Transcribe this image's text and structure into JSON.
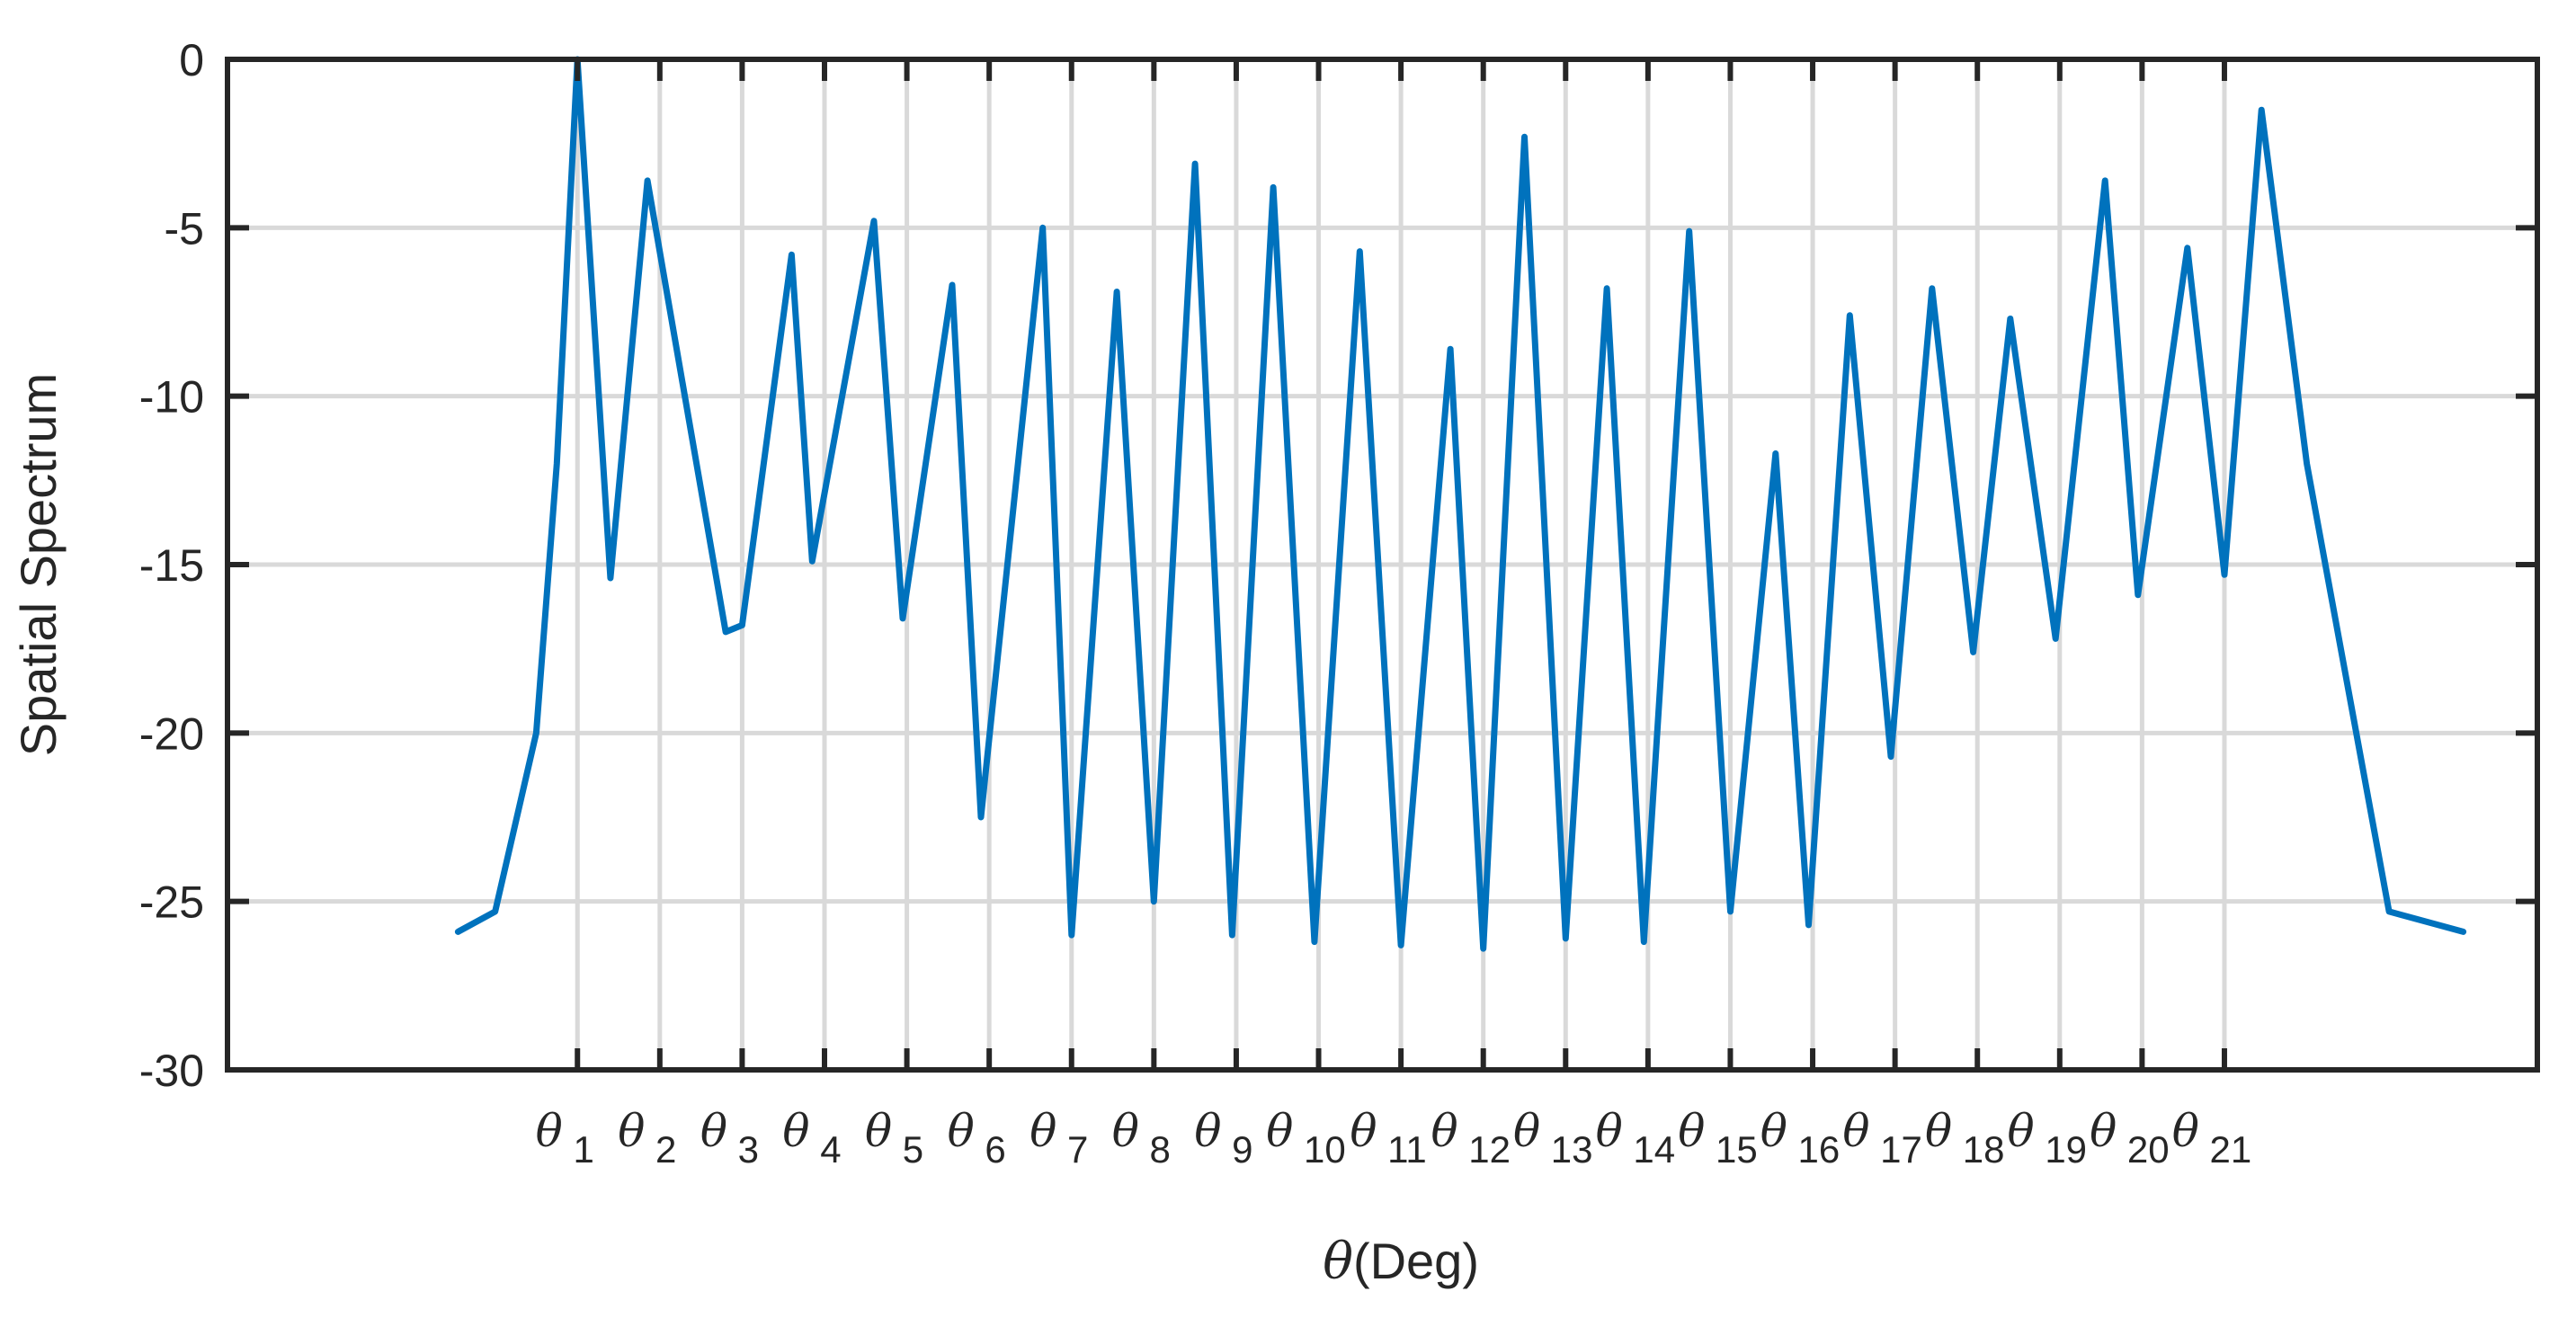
{
  "chart_data": {
    "type": "line",
    "title": "",
    "xlabel_symbol": "θ",
    "xlabel_unit": "(Deg)",
    "ylabel": "Spatial Spectrum",
    "ylim": [
      -30,
      0
    ],
    "yticks": [
      0,
      -5,
      -10,
      -15,
      -20,
      -25,
      -30
    ],
    "ytick_labels": [
      "0",
      "-5",
      "-10",
      "-15",
      "-20",
      "-25",
      "-30"
    ],
    "xlim": [
      -4.25,
      23.8
    ],
    "grid": true,
    "legend": "none",
    "line_color": "#0072BD",
    "grid_color": "#d9d9d9",
    "x_ticks": [
      {
        "symbol": "θ",
        "sub": "1"
      },
      {
        "symbol": "θ",
        "sub": "2"
      },
      {
        "symbol": "θ",
        "sub": "3"
      },
      {
        "symbol": "θ",
        "sub": "4"
      },
      {
        "symbol": "θ",
        "sub": "5"
      },
      {
        "symbol": "θ",
        "sub": "6"
      },
      {
        "symbol": "θ",
        "sub": "7"
      },
      {
        "symbol": "θ",
        "sub": "8"
      },
      {
        "symbol": "θ",
        "sub": "9"
      },
      {
        "symbol": "θ",
        "sub": "10"
      },
      {
        "symbol": "θ",
        "sub": "11"
      },
      {
        "symbol": "θ",
        "sub": "12"
      },
      {
        "symbol": "θ",
        "sub": "13"
      },
      {
        "symbol": "θ",
        "sub": "14"
      },
      {
        "symbol": "θ",
        "sub": "15"
      },
      {
        "symbol": "θ",
        "sub": "16"
      },
      {
        "symbol": "θ",
        "sub": "17"
      },
      {
        "symbol": "θ",
        "sub": "18"
      },
      {
        "symbol": "θ",
        "sub": "19"
      },
      {
        "symbol": "θ",
        "sub": "20"
      },
      {
        "symbol": "θ",
        "sub": "21"
      }
    ],
    "series": [
      {
        "x": [
          -1.45,
          -1.0,
          -0.5,
          -0.25,
          0.0,
          0.4,
          0.85,
          1.8,
          2.0,
          2.6,
          2.85,
          3.6,
          3.95,
          4.55,
          4.9,
          5.65,
          6.0,
          6.55,
          7.0,
          7.5,
          7.95,
          8.45,
          8.95,
          9.5,
          10.0,
          10.6,
          11.0,
          11.5,
          12.0,
          12.5,
          12.95,
          13.5,
          14.0,
          14.55,
          14.95,
          15.45,
          15.95,
          16.45,
          16.95,
          17.4,
          17.95,
          18.55,
          18.95,
          19.55,
          20.0,
          20.45,
          21.0,
          22.0,
          22.9
        ],
        "y": [
          -25.9,
          -25.3,
          -20.0,
          -12.0,
          0.0,
          -15.4,
          -3.6,
          -17.0,
          -16.8,
          -5.8,
          -14.9,
          -4.8,
          -16.6,
          -6.7,
          -22.5,
          -5.0,
          -26.0,
          -6.9,
          -25.0,
          -3.1,
          -26.0,
          -3.8,
          -26.2,
          -5.7,
          -26.3,
          -8.6,
          -26.4,
          -2.3,
          -26.1,
          -6.8,
          -26.2,
          -5.1,
          -25.3,
          -11.7,
          -25.7,
          -7.6,
          -20.7,
          -6.8,
          -17.6,
          -7.7,
          -17.2,
          -3.6,
          -15.9,
          -5.6,
          -15.3,
          -1.5,
          -12.0,
          -25.3,
          -25.9
        ]
      }
    ]
  }
}
